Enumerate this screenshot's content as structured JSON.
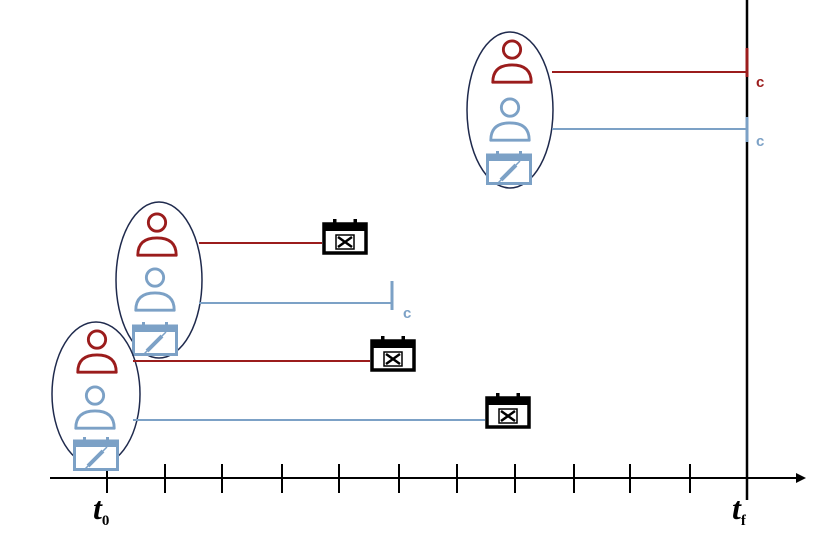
{
  "colors": {
    "dark_red": "#9b1c1c",
    "light_blue": "#7ca1c6",
    "axis": "#000000",
    "ellipse": "#1f2a4d"
  },
  "axis": {
    "t0_label": "t",
    "t0_sub": "0",
    "tf_label": "t",
    "tf_sub": "f"
  },
  "censor_labels": {
    "top_red": "c",
    "top_blue": "c",
    "mid_blue": "c"
  },
  "icons": {
    "person": "person-icon",
    "vaccine_calendar": "calendar-syringe-icon",
    "event_calendar": "calendar-x-icon"
  }
}
